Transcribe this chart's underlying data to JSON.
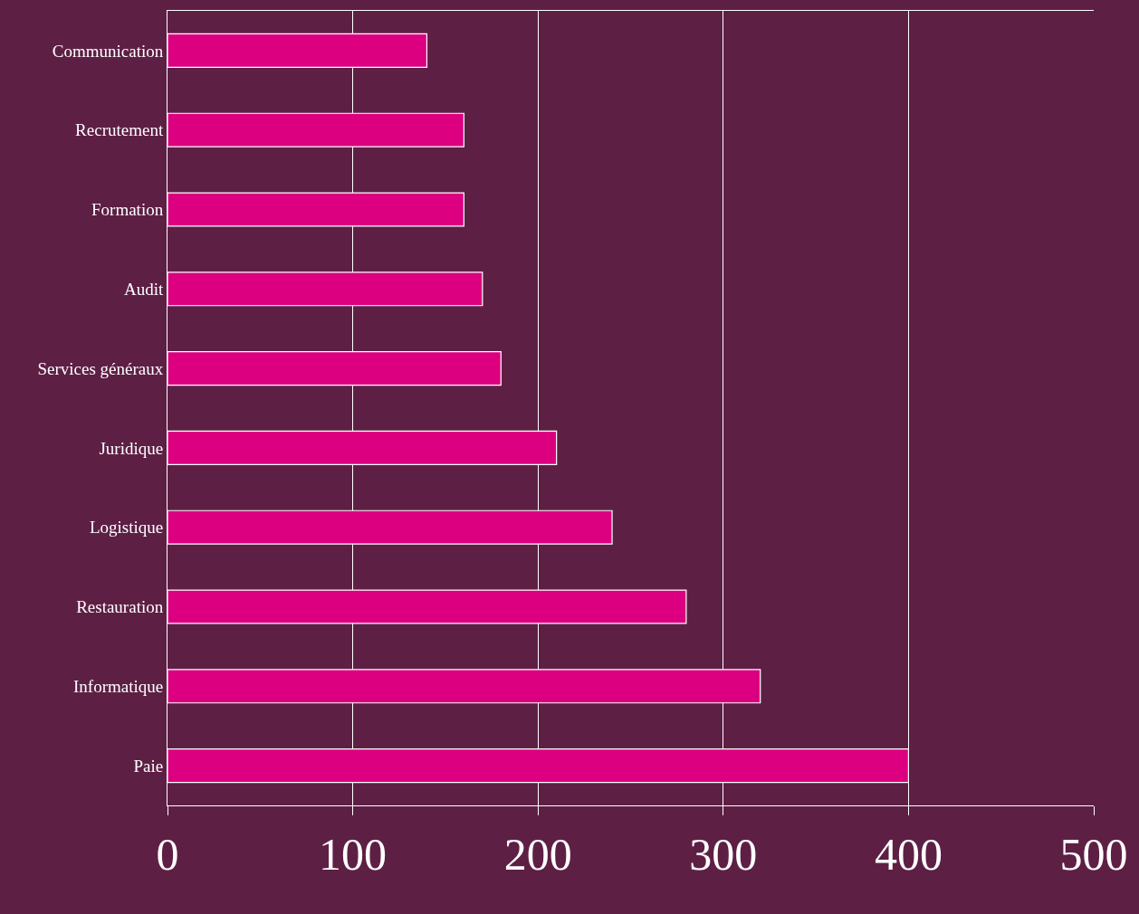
{
  "chart_data": {
    "type": "bar",
    "orientation": "horizontal",
    "categories": [
      "Communication",
      "Recrutement",
      "Formation",
      "Audit",
      "Services généraux",
      "Juridique",
      "Logistique",
      "Restauration",
      "Informatique",
      "Paie"
    ],
    "values": [
      140,
      160,
      160,
      170,
      180,
      210,
      240,
      280,
      320,
      400
    ],
    "color": "#dc0080",
    "xlim": [
      0,
      500
    ],
    "xticks": [
      0,
      100,
      200,
      300,
      400,
      500
    ],
    "grid": "x",
    "legend": false
  }
}
